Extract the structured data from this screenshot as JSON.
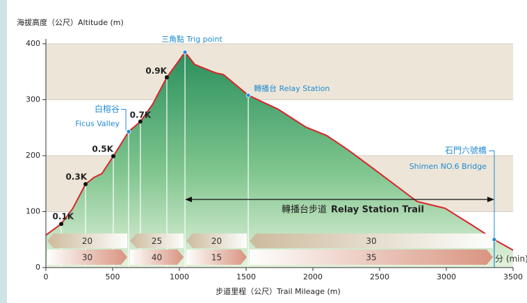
{
  "chart_data": {
    "type": "area",
    "title": "海拔高度（公尺）Altitude (m)",
    "x_label": "步道里程（公尺）Trail Mileage (m)",
    "x": [
      0,
      115,
      200,
      297,
      360,
      420,
      505,
      620,
      708,
      800,
      906,
      1042,
      1115,
      1271,
      1330,
      1516,
      1740,
      1948,
      2104,
      2260,
      2469,
      2781,
      2990,
      3198,
      3359,
      3500
    ],
    "values": [
      58,
      78,
      105,
      149,
      161,
      168,
      199,
      243,
      261,
      292,
      340,
      385,
      363,
      348,
      345,
      308,
      283,
      251,
      236,
      211,
      174,
      118,
      106,
      75,
      50,
      31
    ],
    "line_color": "#d7262a",
    "xlim": [
      0,
      3500
    ],
    "ylim": [
      0,
      400
    ],
    "xticks": [
      0,
      500,
      1000,
      1500,
      2000,
      2500,
      3000,
      3500
    ],
    "yticks": [
      0,
      100,
      200,
      300,
      400
    ],
    "grid": true,
    "markers": [
      {
        "label": "0.1K",
        "x": 115,
        "y": 78
      },
      {
        "label": "0.3K",
        "x": 297,
        "y": 149
      },
      {
        "label": "0.5K",
        "x": 505,
        "y": 199
      },
      {
        "label": "0.7K",
        "x": 708,
        "y": 261
      },
      {
        "label": "0.9K",
        "x": 906,
        "y": 340
      }
    ],
    "points_of_interest": [
      {
        "label": "三角點 Trig point",
        "x": 1042,
        "y": 385
      },
      {
        "label": "轉播台 Relay Station",
        "x": 1516,
        "y": 308
      },
      {
        "label": "白榕谷",
        "sublabel": "Ficus Valley",
        "x": 620,
        "y": 243
      },
      {
        "label": "石門六號橋",
        "sublabel": "Shimen NO.6 Bridge",
        "x": 3359,
        "y": 50
      }
    ],
    "trail": {
      "label": "轉播台步道",
      "sublabel": "Relay Station Trail",
      "from": 1042,
      "to": 3359
    },
    "time_unit": "分 (min)",
    "time_return": [
      {
        "from": 0,
        "to": 620,
        "minutes": 20
      },
      {
        "from": 620,
        "to": 1042,
        "minutes": 25
      },
      {
        "from": 1042,
        "to": 1516,
        "minutes": 20
      },
      {
        "from": 1516,
        "to": 3359,
        "minutes": 30
      }
    ],
    "time_forward": [
      {
        "from": 0,
        "to": 620,
        "minutes": 30
      },
      {
        "from": 620,
        "to": 1042,
        "minutes": 40
      },
      {
        "from": 1042,
        "to": 1516,
        "minutes": 15
      },
      {
        "from": 1516,
        "to": 3359,
        "minutes": 35
      }
    ]
  }
}
